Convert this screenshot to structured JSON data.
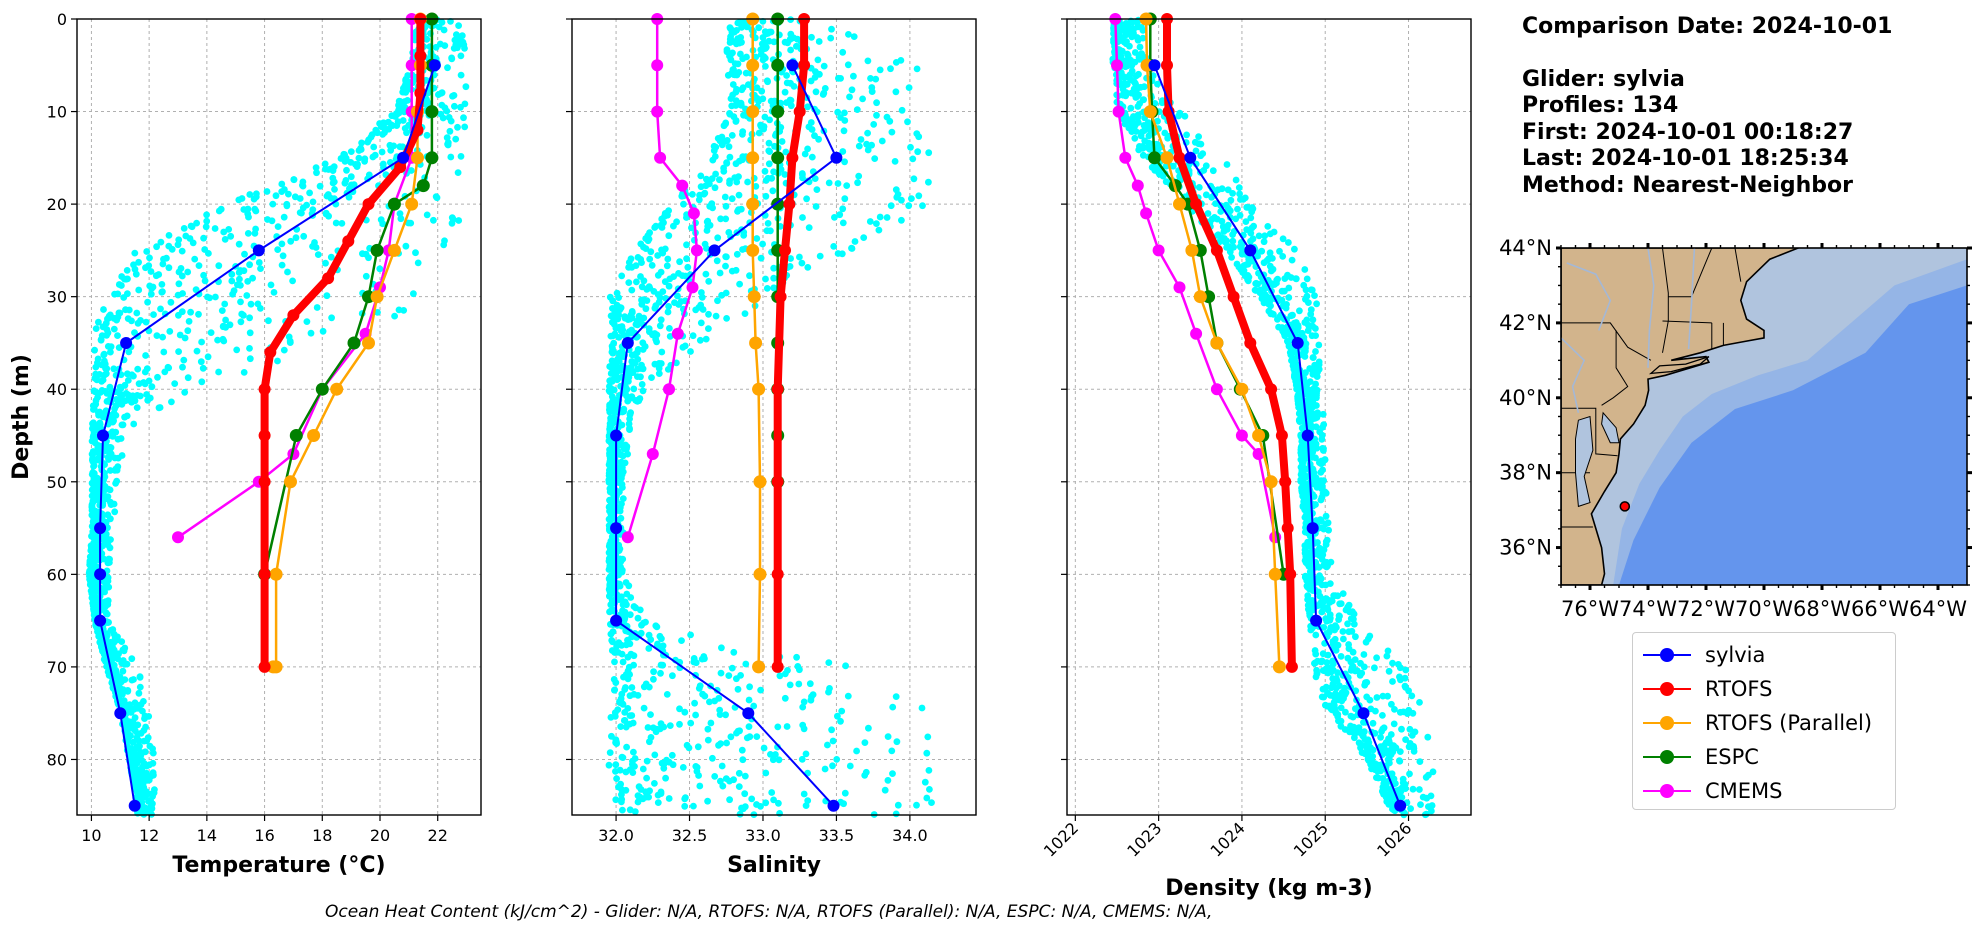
{
  "info": {
    "comparison_date": "Comparison Date: 2024-10-01",
    "glider": "Glider: sylvia",
    "profiles": "Profiles: 134",
    "first": "First: 2024-10-01 00:18:27",
    "last": "Last: 2024-10-01 18:25:34",
    "method": "Method: Nearest-Neighbor"
  },
  "footer": "Ocean Heat Content (kJ/cm^2) - Glider: N/A,  RTOFS: N/A,  RTOFS (Parallel): N/A,  ESPC: N/A,  CMEMS: N/A,",
  "colors": {
    "sylvia": "#0000ff",
    "RTOFS": "#ff0000",
    "RTOFS (Parallel)": "#ffa500",
    "ESPC": "#008000",
    "CMEMS": "#ff00ff",
    "glider_cloud": "#00ffff",
    "land": "#d2b48c",
    "shelf": "#b0c4de",
    "slope": "#95b5e6",
    "deep_ocean": "#6495ed"
  },
  "legend": [
    "sylvia",
    "RTOFS",
    "RTOFS (Parallel)",
    "ESPC",
    "CMEMS"
  ],
  "chart_data": [
    {
      "type": "line",
      "xlabel": "Temperature (°C)",
      "ylabel": "Depth (m)",
      "xlim": [
        9.5,
        23.5
      ],
      "ylim": [
        86,
        0
      ],
      "xticks": [
        10,
        12,
        14,
        16,
        18,
        20,
        22
      ],
      "yticks": [
        0,
        10,
        20,
        30,
        40,
        50,
        60,
        70,
        80
      ],
      "grid": true,
      "glider_envelope": {
        "depth": [
          0,
          5,
          10,
          15,
          20,
          25,
          30,
          35,
          40,
          45,
          50,
          55,
          60,
          65,
          70,
          75,
          80,
          86
        ],
        "min": [
          21.3,
          21.0,
          20.5,
          18.5,
          14.5,
          11.5,
          10.3,
          10.1,
          10.0,
          10.0,
          10.0,
          10.0,
          9.9,
          10.1,
          10.5,
          11.0,
          11.3,
          11.6
        ],
        "max": [
          23.0,
          23.0,
          23.0,
          22.9,
          22.8,
          22.6,
          21.6,
          19.0,
          13.5,
          11.2,
          10.9,
          10.8,
          10.6,
          10.6,
          11.6,
          12.0,
          12.2,
          12.2
        ]
      },
      "series": [
        {
          "name": "sylvia",
          "x": [
            21.9,
            20.8,
            15.8,
            11.2,
            10.4,
            10.3,
            10.3,
            10.3,
            11.0,
            11.5
          ],
          "y": [
            5,
            15,
            25,
            35,
            45,
            55,
            60,
            65,
            75,
            85
          ]
        },
        {
          "name": "RTOFS",
          "x": [
            21.4,
            21.4,
            21.4,
            21.3,
            20.7,
            19.6,
            18.9,
            18.2,
            17.0,
            16.2,
            16.0,
            16.0,
            16.0,
            16.0,
            16.0
          ],
          "y": [
            0,
            4,
            8,
            12,
            16,
            20,
            24,
            28,
            32,
            36,
            40,
            45,
            50,
            60,
            70
          ]
        },
        {
          "name": "RTOFS (Parallel)",
          "x": [
            21.4,
            21.4,
            21.3,
            21.3,
            21.1,
            20.5,
            19.9,
            19.6,
            18.5,
            17.7,
            16.9,
            16.4,
            16.4,
            16.3
          ],
          "y": [
            0,
            5,
            10,
            15,
            20,
            25,
            30,
            35,
            40,
            45,
            50,
            60,
            70,
            70
          ]
        },
        {
          "name": "ESPC",
          "x": [
            21.8,
            21.8,
            21.8,
            21.8,
            21.5,
            20.5,
            19.9,
            19.6,
            19.1,
            18.0,
            17.1,
            16.0
          ],
          "y": [
            0,
            5,
            10,
            15,
            18,
            20,
            25,
            30,
            35,
            40,
            45,
            60
          ]
        },
        {
          "name": "CMEMS",
          "x": [
            21.1,
            21.1,
            21.1,
            21.1,
            20.5,
            20.3,
            20.0,
            19.5,
            18.0,
            17.0,
            15.8,
            13.0
          ],
          "y": [
            0,
            5,
            10,
            15,
            20,
            25,
            29,
            34,
            40,
            47,
            50,
            56
          ]
        }
      ]
    },
    {
      "type": "line",
      "xlabel": "Salinity",
      "xlim": [
        31.7,
        34.45
      ],
      "ylim": [
        86,
        0
      ],
      "xticks": [
        32.0,
        32.5,
        33.0,
        33.5,
        34.0
      ],
      "grid": true,
      "glider_envelope": {
        "depth": [
          0,
          5,
          10,
          15,
          20,
          25,
          30,
          35,
          40,
          45,
          50,
          55,
          60,
          65,
          70,
          75,
          80,
          86
        ],
        "min": [
          32.75,
          32.75,
          32.75,
          32.6,
          32.35,
          32.1,
          31.95,
          31.95,
          31.95,
          31.95,
          31.95,
          31.95,
          31.95,
          31.95,
          31.95,
          31.95,
          31.95,
          31.95
        ],
        "max": [
          33.4,
          34.05,
          34.05,
          34.15,
          34.15,
          33.6,
          33.1,
          32.6,
          32.2,
          32.1,
          32.05,
          32.05,
          32.05,
          32.2,
          33.6,
          34.15,
          34.2,
          34.2
        ]
      },
      "series": [
        {
          "name": "sylvia",
          "x": [
            33.2,
            33.5,
            32.67,
            32.08,
            32.0,
            32.0,
            32.0,
            32.9,
            33.48
          ],
          "y": [
            5,
            15,
            25,
            35,
            45,
            55,
            65,
            75,
            85
          ]
        },
        {
          "name": "RTOFS",
          "x": [
            33.28,
            33.28,
            33.25,
            33.2,
            33.18,
            33.15,
            33.12,
            33.1,
            33.1,
            33.1,
            33.1
          ],
          "y": [
            0,
            5,
            10,
            15,
            20,
            25,
            30,
            40,
            50,
            60,
            70
          ]
        },
        {
          "name": "RTOFS (Parallel)",
          "x": [
            32.93,
            32.93,
            32.93,
            32.93,
            32.93,
            32.93,
            32.94,
            32.95,
            32.97,
            32.98,
            32.98,
            32.97
          ],
          "y": [
            0,
            5,
            10,
            15,
            20,
            25,
            30,
            35,
            40,
            50,
            60,
            70
          ]
        },
        {
          "name": "ESPC",
          "x": [
            33.1,
            33.1,
            33.1,
            33.1,
            33.1,
            33.1,
            33.1,
            33.1,
            33.1,
            33.1,
            33.1
          ],
          "y": [
            0,
            5,
            10,
            15,
            20,
            25,
            30,
            35,
            40,
            45,
            50
          ]
        },
        {
          "name": "CMEMS",
          "x": [
            32.28,
            32.28,
            32.28,
            32.3,
            32.45,
            32.53,
            32.55,
            32.52,
            32.42,
            32.36,
            32.25,
            32.08
          ],
          "y": [
            0,
            5,
            10,
            15,
            18,
            21,
            25,
            29,
            34,
            40,
            47,
            56
          ]
        }
      ]
    },
    {
      "type": "line",
      "xlabel": "Density (kg m-3)",
      "xlim": [
        1021.9,
        1026.75
      ],
      "ylim": [
        86,
        0
      ],
      "xticks": [
        1022,
        1023,
        1024,
        1025,
        1026
      ],
      "grid": true,
      "glider_envelope": {
        "depth": [
          0,
          5,
          10,
          15,
          20,
          25,
          30,
          35,
          40,
          45,
          50,
          55,
          60,
          65,
          70,
          75,
          80,
          86
        ],
        "min": [
          1022.45,
          1022.45,
          1022.5,
          1022.8,
          1023.3,
          1023.8,
          1024.2,
          1024.55,
          1024.65,
          1024.7,
          1024.7,
          1024.75,
          1024.75,
          1024.8,
          1024.85,
          1025.0,
          1025.5,
          1025.8
        ],
        "max": [
          1022.8,
          1022.9,
          1023.3,
          1023.8,
          1024.3,
          1024.7,
          1024.9,
          1024.95,
          1024.95,
          1025.0,
          1025.0,
          1025.05,
          1025.1,
          1025.5,
          1026.0,
          1026.2,
          1026.3,
          1026.3
        ]
      },
      "series": [
        {
          "name": "sylvia",
          "x": [
            1022.95,
            1023.38,
            1024.1,
            1024.67,
            1024.79,
            1024.85,
            1024.89,
            1025.46,
            1025.9
          ],
          "y": [
            5,
            15,
            25,
            35,
            45,
            55,
            65,
            75,
            85
          ]
        },
        {
          "name": "RTOFS",
          "x": [
            1023.1,
            1023.1,
            1023.12,
            1023.25,
            1023.45,
            1023.7,
            1023.9,
            1024.1,
            1024.35,
            1024.48,
            1024.52,
            1024.55,
            1024.58,
            1024.6
          ],
          "y": [
            0,
            5,
            10,
            15,
            20,
            25,
            30,
            35,
            40,
            45,
            50,
            55,
            60,
            70
          ]
        },
        {
          "name": "RTOFS (Parallel)",
          "x": [
            1022.85,
            1022.86,
            1022.9,
            1023.1,
            1023.25,
            1023.4,
            1023.5,
            1023.7,
            1024.0,
            1024.2,
            1024.35,
            1024.4,
            1024.45
          ],
          "y": [
            0,
            5,
            10,
            15,
            20,
            25,
            30,
            35,
            40,
            45,
            50,
            60,
            70
          ]
        },
        {
          "name": "ESPC",
          "x": [
            1022.9,
            1022.9,
            1022.92,
            1022.95,
            1023.2,
            1023.35,
            1023.5,
            1023.6,
            1023.7,
            1023.98,
            1024.25,
            1024.5
          ],
          "y": [
            0,
            5,
            10,
            15,
            18,
            20,
            25,
            30,
            35,
            40,
            45,
            60
          ]
        },
        {
          "name": "CMEMS",
          "x": [
            1022.48,
            1022.5,
            1022.52,
            1022.6,
            1022.75,
            1022.85,
            1023.0,
            1023.25,
            1023.45,
            1023.7,
            1024.0,
            1024.2,
            1024.4
          ],
          "y": [
            0,
            5,
            10,
            15,
            18,
            21,
            25,
            29,
            34,
            40,
            45,
            47,
            56
          ]
        }
      ]
    }
  ],
  "map": {
    "lon_range": [
      -77.0,
      -63.0
    ],
    "lat_range": [
      35.0,
      44.0
    ],
    "lat_ticks": [
      "44°N",
      "42°N",
      "40°N",
      "38°N",
      "36°N"
    ],
    "lon_ticks": [
      "76°W",
      "74°W",
      "72°W",
      "70°W",
      "68°W",
      "66°W",
      "64°W"
    ],
    "glider_location": {
      "lon": -74.8,
      "lat": 37.1
    }
  }
}
